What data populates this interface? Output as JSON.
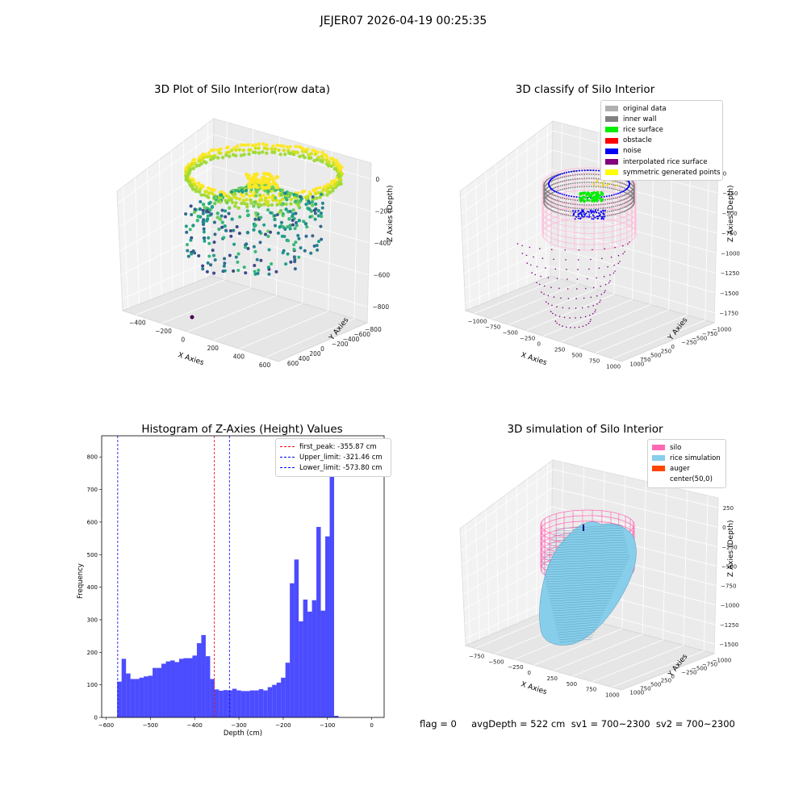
{
  "suptitle": "JEJER07 2026-04-19 00:25:35",
  "panels": {
    "raw": {
      "title": "3D Plot of Silo Interior(row data)",
      "xlabel": "X Axies",
      "ylabel": "Y Axies",
      "zlabel": "Z Axies (Depth)",
      "xticks": [
        "−400",
        "−200",
        "0",
        "200",
        "400",
        "600"
      ],
      "yticks": [
        "−800",
        "−600",
        "−400",
        "−200",
        "0",
        "200",
        "400",
        "600"
      ],
      "zticks": [
        "0",
        "−200",
        "−400",
        "−600",
        "−800"
      ]
    },
    "classify": {
      "title": "3D classify of Silo Interior",
      "xlabel": "X Axies",
      "ylabel": "Y Axies",
      "zlabel": "Z Axies (Depth)",
      "xticks": [
        "−1000",
        "−750",
        "−500",
        "−250",
        "0",
        "250",
        "500",
        "750",
        "1000"
      ],
      "yticks": [
        "−1000",
        "−750",
        "−500",
        "−250",
        "0",
        "250",
        "500",
        "750",
        "1000"
      ],
      "zticks": [
        "0",
        "−250",
        "−500",
        "−750",
        "−1000",
        "−1250",
        "−1500",
        "−1750"
      ],
      "legend": [
        {
          "label": "original data",
          "color": "#b0b0b0"
        },
        {
          "label": "inner wall",
          "color": "#808080"
        },
        {
          "label": "rice surface",
          "color": "#00ee00"
        },
        {
          "label": "obstacle",
          "color": "#ff0000"
        },
        {
          "label": "noise",
          "color": "#0000ff"
        },
        {
          "label": "interpolated rice surface",
          "color": "#800080"
        },
        {
          "label": "symmetric generated points",
          "color": "#ffff00"
        }
      ]
    },
    "simulation": {
      "title": "3D simulation of Silo Interior",
      "xlabel": "X Axies",
      "ylabel": "Y Axies",
      "zlabel": "Z Axies (Depth)",
      "xticks": [
        "−750",
        "−500",
        "−250",
        "0",
        "250",
        "500",
        "750",
        "1000"
      ],
      "yticks": [
        "−1000",
        "−750",
        "−500",
        "−250",
        "0",
        "250",
        "500",
        "750",
        "1000"
      ],
      "zticks": [
        "250",
        "0",
        "−250",
        "−500",
        "−750",
        "−1000",
        "−1250",
        "−1500"
      ],
      "legend": [
        {
          "label": "silo",
          "color": "#ff69b4"
        },
        {
          "label": "rice simulation",
          "color": "#87ceeb"
        },
        {
          "label": "auger",
          "color": "#ff4500"
        },
        {
          "label": "center(50,0)",
          "color": "#ffffff"
        }
      ]
    }
  },
  "chart_data": {
    "type": "bar",
    "title": "Histogram of Z-Axies (Height) Values",
    "xlabel": "Depth (cm)",
    "ylabel": "Frequency",
    "xlim": [
      -600,
      0
    ],
    "ylim": [
      0,
      850
    ],
    "xticks": [
      -600,
      -500,
      -400,
      -300,
      -200,
      -100,
      0
    ],
    "yticks": [
      0,
      100,
      200,
      300,
      400,
      500,
      600,
      700,
      800
    ],
    "bin_start": -575,
    "bin_width": 10,
    "color": "#0000ff",
    "values": [
      110,
      180,
      135,
      118,
      118,
      122,
      126,
      128,
      152,
      152,
      165,
      172,
      175,
      170,
      180,
      182,
      182,
      190,
      228,
      253,
      188,
      118,
      86,
      82,
      84,
      83,
      88,
      83,
      81,
      81,
      83,
      83,
      87,
      83,
      93,
      100,
      107,
      122,
      168,
      412,
      485,
      295,
      362,
      325,
      360,
      585,
      328,
      556,
      815,
      5
    ],
    "lines": [
      {
        "name": "first_peak: -355.87 cm",
        "x": -355.87,
        "color": "#ff0000"
      },
      {
        "name": "Upper_limit: -321.46 cm",
        "x": -321.46,
        "color": "#0000ff"
      },
      {
        "name": "Lower_limit: -573.80 cm",
        "x": -573.8,
        "color": "#0000ff"
      }
    ],
    "legend_position": "upper right"
  },
  "bottom_text": "flag = 0     avgDepth = 522 cm  sv1 = 700~2300  sv2 = 700~2300"
}
